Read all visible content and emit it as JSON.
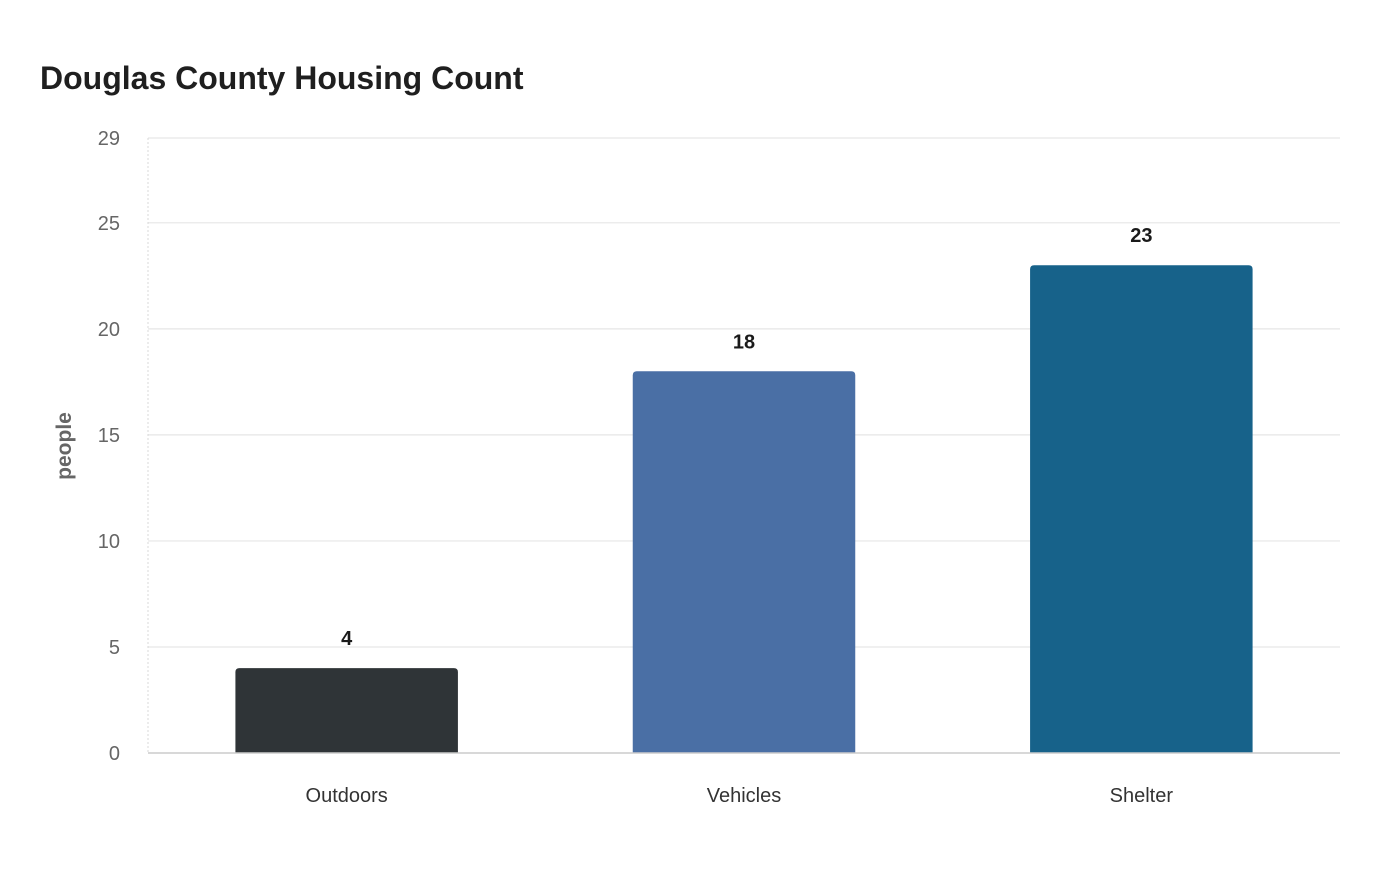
{
  "chart_data": {
    "type": "bar",
    "title": "Douglas County Housing Count",
    "xlabel": "",
    "ylabel": "people",
    "categories": [
      "Outdoors",
      "Vehicles",
      "Shelter"
    ],
    "values": [
      4,
      18,
      23
    ],
    "value_labels": [
      "4",
      "18",
      "23"
    ],
    "colors": [
      "#2f3437",
      "#4a6fa5",
      "#17628a"
    ],
    "ylim": [
      0,
      29
    ],
    "yticks": [
      0,
      5,
      10,
      15,
      20,
      25,
      29
    ],
    "ytick_labels": [
      "0",
      "5",
      "10",
      "15",
      "20",
      "25",
      "29"
    ],
    "grid": true,
    "legend": "none"
  }
}
